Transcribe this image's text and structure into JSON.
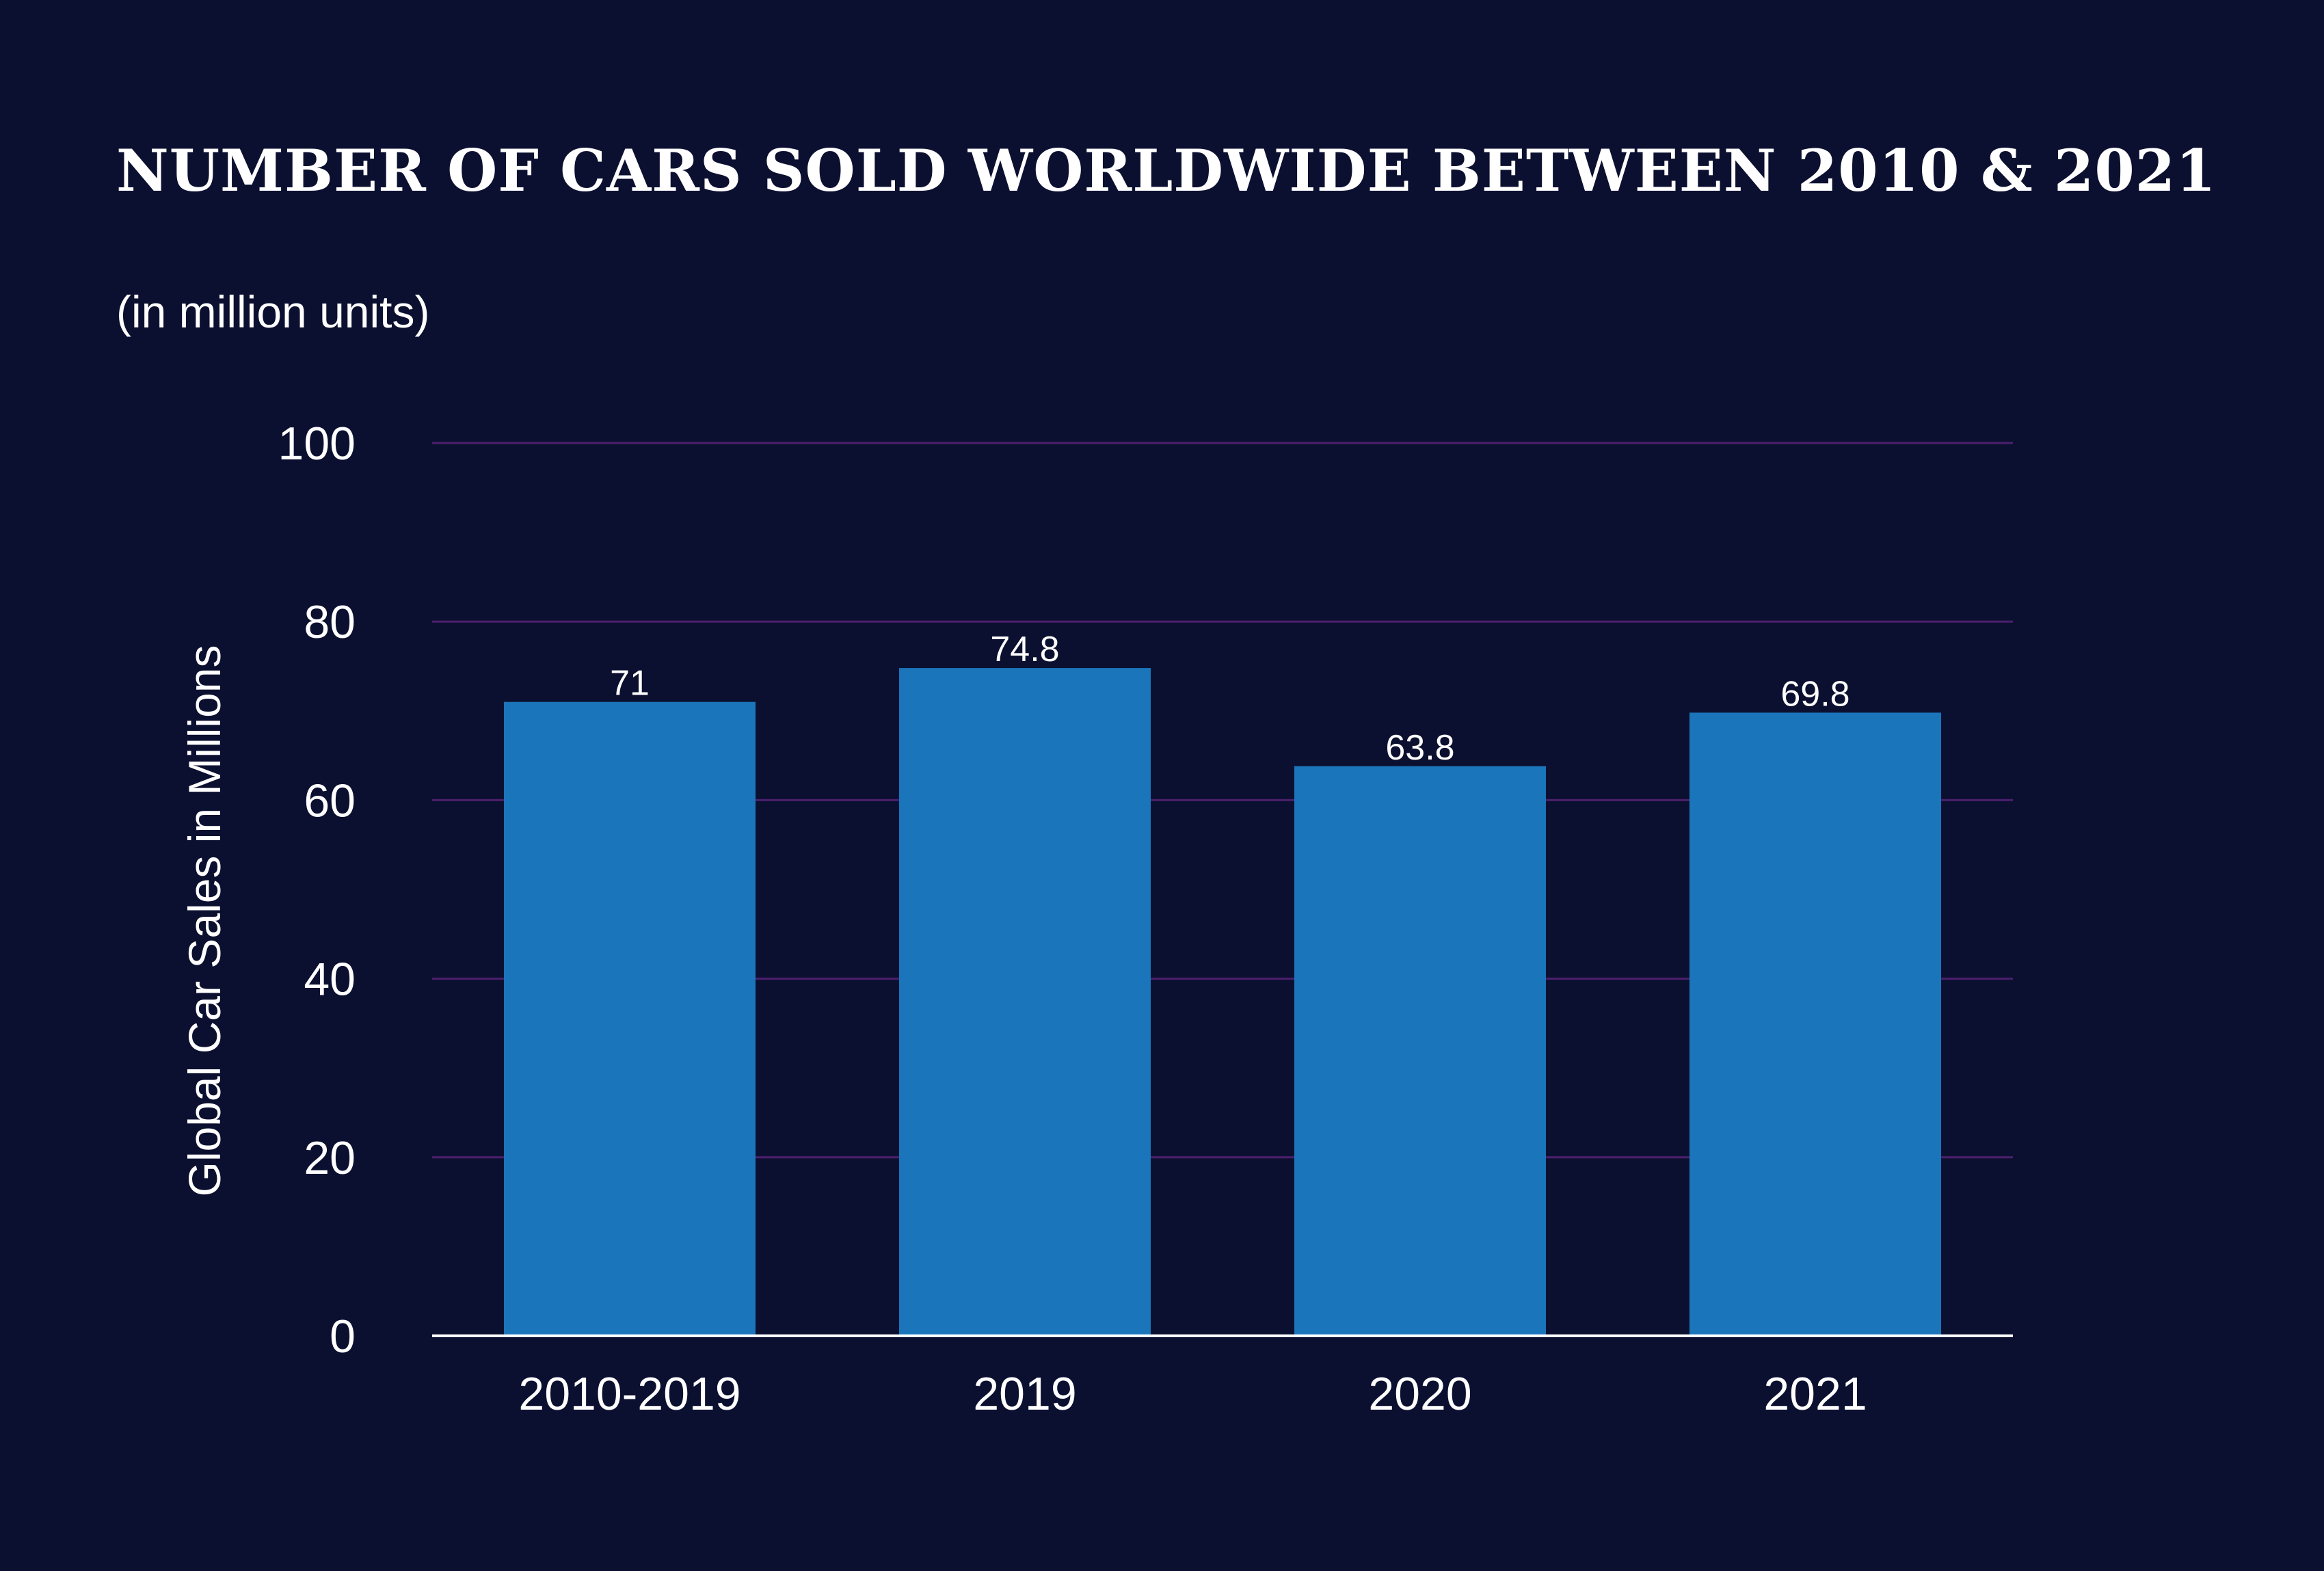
{
  "chart_data": {
    "type": "bar",
    "title": "NUMBER OF CARS SOLD WORLDWIDE BETWEEN 2010 & 2021",
    "subtitle": "(in million units)",
    "xlabel": "",
    "ylabel": "Global Car Sales in Millions",
    "categories": [
      "2010-2019",
      "2019",
      "2020",
      "2021"
    ],
    "values": [
      71,
      74.8,
      63.8,
      69.8
    ],
    "value_labels": [
      "71",
      "74.8",
      "63.8",
      "69.8"
    ],
    "ylim": [
      0,
      100
    ],
    "yticks": [
      0,
      20,
      40,
      60,
      80,
      100
    ],
    "grid": true,
    "legend": "none",
    "colors": {
      "background": "#0c1030",
      "bar": "#1b75bb",
      "grid": "#4b1f6e",
      "axis": "#ffffff",
      "text": "#ffffff"
    }
  }
}
